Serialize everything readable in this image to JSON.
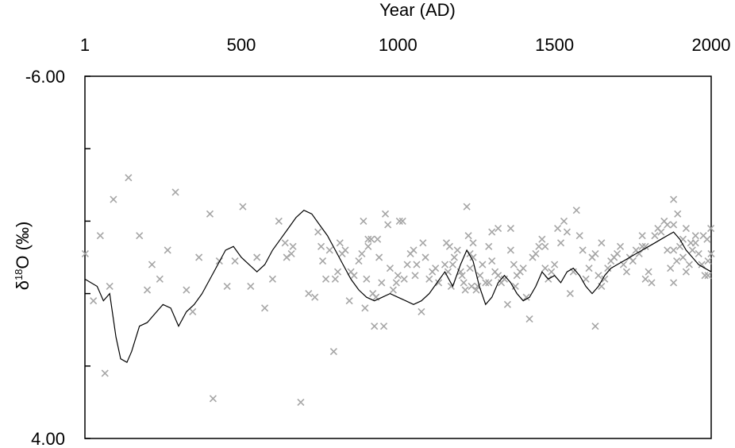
{
  "chart_data": {
    "type": "scatter",
    "title": "",
    "xlabel": "Year (AD)",
    "ylabel": {
      "main": "δ",
      "sup": "18",
      "rest": "O (‰)"
    },
    "xlim": [
      1,
      2000
    ],
    "ylim": [
      -6.0,
      4.0
    ],
    "y_inverted": true,
    "x_axis_position": "top",
    "x_ticks": [
      1,
      500,
      1000,
      1500,
      2000
    ],
    "x_tick_labels": [
      "1",
      "500",
      "1000",
      "1500",
      "2000"
    ],
    "y_ticks": [
      -6,
      -4,
      -2,
      0,
      2,
      4
    ],
    "y_tick_labels": [
      {
        "value": -6,
        "text": "-6.00"
      },
      {
        "value": 4,
        "text": "4.00"
      }
    ],
    "grid": false,
    "colors": {
      "scatter": "#a6a6a6",
      "line": "#000000",
      "frame": "#000000"
    },
    "series": [
      {
        "type": "scatter",
        "marker": "x",
        "points": [
          [
            2,
            -1.1
          ],
          [
            28,
            0.2
          ],
          [
            50,
            -1.6
          ],
          [
            65,
            2.2
          ],
          [
            80,
            -0.2
          ],
          [
            92,
            -2.6
          ],
          [
            140,
            -3.2
          ],
          [
            175,
            -1.6
          ],
          [
            200,
            -0.1
          ],
          [
            215,
            -0.8
          ],
          [
            240,
            -0.4
          ],
          [
            265,
            -1.2
          ],
          [
            290,
            -2.8
          ],
          [
            325,
            -0.1
          ],
          [
            345,
            0.5
          ],
          [
            365,
            -1.0
          ],
          [
            400,
            -2.2
          ],
          [
            410,
            2.9
          ],
          [
            430,
            -0.9
          ],
          [
            455,
            -0.2
          ],
          [
            480,
            -0.9
          ],
          [
            505,
            -2.4
          ],
          [
            530,
            -0.2
          ],
          [
            550,
            -1.0
          ],
          [
            575,
            0.4
          ],
          [
            600,
            -0.4
          ],
          [
            620,
            -2.0
          ],
          [
            645,
            -1.0
          ],
          [
            665,
            -1.3
          ],
          [
            690,
            3.0
          ],
          [
            715,
            0.0
          ],
          [
            735,
            0.1
          ],
          [
            755,
            -1.3
          ],
          [
            760,
            -0.9
          ],
          [
            770,
            -0.4
          ],
          [
            782,
            -1.2
          ],
          [
            795,
            1.6
          ],
          [
            800,
            -0.4
          ],
          [
            808,
            -0.6
          ],
          [
            815,
            -1.4
          ],
          [
            822,
            -1.1
          ],
          [
            832,
            -1.2
          ],
          [
            845,
            0.2
          ],
          [
            850,
            -0.6
          ],
          [
            860,
            -0.5
          ],
          [
            875,
            -0.9
          ],
          [
            885,
            -1.1
          ],
          [
            890,
            -2.0
          ],
          [
            895,
            0.4
          ],
          [
            900,
            -0.4
          ],
          [
            905,
            -1.3
          ],
          [
            915,
            -1.5
          ],
          [
            920,
            0.0
          ],
          [
            925,
            0.9
          ],
          [
            930,
            0.1
          ],
          [
            935,
            -1.5
          ],
          [
            940,
            -1.0
          ],
          [
            948,
            -0.3
          ],
          [
            955,
            0.9
          ],
          [
            960,
            -2.2
          ],
          [
            968,
            -1.9
          ],
          [
            975,
            -0.7
          ],
          [
            985,
            -0.1
          ],
          [
            995,
            -0.3
          ],
          [
            1000,
            -0.5
          ],
          [
            1005,
            -2.0
          ],
          [
            1015,
            -2.0
          ],
          [
            1020,
            -0.4
          ],
          [
            1030,
            -0.8
          ],
          [
            1040,
            -1.1
          ],
          [
            1050,
            -1.2
          ],
          [
            1055,
            -0.5
          ],
          [
            1060,
            -0.8
          ],
          [
            1075,
            0.5
          ],
          [
            1080,
            -1.4
          ],
          [
            1088,
            -1.0
          ],
          [
            1100,
            -0.4
          ],
          [
            1110,
            -0.6
          ],
          [
            1120,
            -0.7
          ],
          [
            1130,
            -0.3
          ],
          [
            1150,
            -0.8
          ],
          [
            1155,
            -1.4
          ],
          [
            1160,
            -0.6
          ],
          [
            1165,
            -1.3
          ],
          [
            1170,
            -0.2
          ],
          [
            1175,
            -0.8
          ],
          [
            1180,
            -1.0
          ],
          [
            1190,
            -1.2
          ],
          [
            1200,
            -0.6
          ],
          [
            1205,
            -0.5
          ],
          [
            1210,
            -0.3
          ],
          [
            1215,
            -0.1
          ],
          [
            1220,
            -2.4
          ],
          [
            1225,
            -1.6
          ],
          [
            1230,
            -0.7
          ],
          [
            1235,
            -0.2
          ],
          [
            1240,
            -1.0
          ],
          [
            1250,
            -0.1
          ],
          [
            1255,
            -0.2
          ],
          [
            1262,
            -0.5
          ],
          [
            1270,
            -0.8
          ],
          [
            1280,
            -0.3
          ],
          [
            1290,
            -0.3
          ],
          [
            1300,
            -0.9
          ],
          [
            1310,
            -0.6
          ],
          [
            1320,
            -0.5
          ],
          [
            1330,
            -0.3
          ],
          [
            1340,
            -0.4
          ],
          [
            1350,
            0.3
          ],
          [
            1360,
            -1.2
          ],
          [
            1370,
            -0.8
          ],
          [
            1375,
            -0.2
          ],
          [
            1380,
            -0.5
          ],
          [
            1390,
            -0.6
          ],
          [
            1400,
            -0.7
          ],
          [
            1410,
            0.1
          ],
          [
            1420,
            0.7
          ],
          [
            1430,
            -1.0
          ],
          [
            1440,
            -1.1
          ],
          [
            1450,
            -1.3
          ],
          [
            1460,
            -1.5
          ],
          [
            1470,
            -0.7
          ],
          [
            1480,
            -0.4
          ],
          [
            1490,
            -0.6
          ],
          [
            1500,
            -0.8
          ],
          [
            1510,
            -1.8
          ],
          [
            1520,
            -1.4
          ],
          [
            1530,
            -2.0
          ],
          [
            1540,
            -1.7
          ],
          [
            1550,
            0.0
          ],
          [
            1560,
            -0.6
          ],
          [
            1570,
            -2.3
          ],
          [
            1580,
            -1.6
          ],
          [
            1590,
            -1.2
          ],
          [
            1600,
            -0.4
          ],
          [
            1610,
            -0.7
          ],
          [
            1620,
            -1.0
          ],
          [
            1630,
            -1.1
          ],
          [
            1640,
            -0.5
          ],
          [
            1650,
            -0.2
          ],
          [
            1660,
            -0.4
          ],
          [
            1670,
            -0.7
          ],
          [
            1680,
            -0.9
          ],
          [
            1690,
            -1.0
          ],
          [
            1700,
            -1.1
          ],
          [
            1710,
            -1.3
          ],
          [
            1720,
            -0.8
          ],
          [
            1730,
            -0.6
          ],
          [
            1740,
            -1.0
          ],
          [
            1750,
            -0.9
          ],
          [
            1760,
            -1.2
          ],
          [
            1770,
            -1.1
          ],
          [
            1780,
            -1.3
          ],
          [
            1790,
            -0.4
          ],
          [
            1800,
            -0.6
          ],
          [
            1810,
            -0.3
          ],
          [
            1820,
            -1.6
          ],
          [
            1830,
            -1.8
          ],
          [
            1840,
            -1.7
          ],
          [
            1850,
            -2.0
          ],
          [
            1860,
            -1.9
          ],
          [
            1870,
            -0.7
          ],
          [
            1880,
            -0.3
          ],
          [
            1890,
            -0.9
          ],
          [
            1900,
            -1.3
          ],
          [
            1910,
            -1.0
          ],
          [
            1920,
            -0.6
          ],
          [
            1930,
            -0.8
          ],
          [
            1940,
            -1.2
          ],
          [
            1950,
            -1.4
          ],
          [
            1960,
            -1.1
          ],
          [
            1970,
            -0.8
          ],
          [
            1980,
            -0.5
          ],
          [
            1990,
            -0.9
          ],
          [
            2000,
            -1.1
          ],
          [
            660,
            -1.1
          ],
          [
            640,
            -1.4
          ],
          [
            745,
            -1.7
          ],
          [
            905,
            -1.5
          ],
          [
            1320,
            -1.8
          ],
          [
            1630,
            0.9
          ],
          [
            1860,
            -1.2
          ],
          [
            1935,
            -1.4
          ],
          [
            1880,
            -1.9
          ],
          [
            1880,
            -2.6
          ],
          [
            1893,
            -2.2
          ],
          [
            1880,
            -1.2
          ],
          [
            1920,
            -1.8
          ],
          [
            1990,
            -0.5
          ],
          [
            1987,
            -1.5
          ],
          [
            1230,
            -1.1
          ],
          [
            1290,
            -1.3
          ],
          [
            1300,
            -1.7
          ],
          [
            1360,
            -1.8
          ],
          [
            1470,
            -1.3
          ],
          [
            1650,
            -1.4
          ],
          [
            1780,
            -1.6
          ],
          [
            1790,
            -1.3
          ],
          [
            1910,
            -1.5
          ],
          [
            1950,
            -1.6
          ],
          [
            1975,
            -1.6
          ],
          [
            1999,
            -1.8
          ],
          [
            1240,
            -1.4
          ]
        ]
      },
      {
        "type": "line",
        "points": [
          [
            1,
            -0.4
          ],
          [
            40,
            -0.2
          ],
          [
            60,
            0.2
          ],
          [
            80,
            0.0
          ],
          [
            100,
            1.2
          ],
          [
            115,
            1.8
          ],
          [
            135,
            1.9
          ],
          [
            150,
            1.6
          ],
          [
            175,
            0.9
          ],
          [
            200,
            0.8
          ],
          [
            220,
            0.6
          ],
          [
            250,
            0.3
          ],
          [
            275,
            0.4
          ],
          [
            300,
            0.9
          ],
          [
            325,
            0.5
          ],
          [
            350,
            0.3
          ],
          [
            375,
            0.0
          ],
          [
            400,
            -0.4
          ],
          [
            425,
            -0.8
          ],
          [
            450,
            -1.2
          ],
          [
            475,
            -1.3
          ],
          [
            500,
            -1.0
          ],
          [
            525,
            -0.8
          ],
          [
            550,
            -0.6
          ],
          [
            575,
            -0.8
          ],
          [
            600,
            -1.2
          ],
          [
            625,
            -1.5
          ],
          [
            650,
            -1.8
          ],
          [
            675,
            -2.1
          ],
          [
            700,
            -2.3
          ],
          [
            725,
            -2.2
          ],
          [
            750,
            -1.9
          ],
          [
            775,
            -1.6
          ],
          [
            800,
            -1.2
          ],
          [
            825,
            -0.8
          ],
          [
            850,
            -0.4
          ],
          [
            875,
            -0.1
          ],
          [
            900,
            0.1
          ],
          [
            925,
            0.2
          ],
          [
            950,
            0.1
          ],
          [
            975,
            0.0
          ],
          [
            1000,
            0.1
          ],
          [
            1025,
            0.2
          ],
          [
            1050,
            0.3
          ],
          [
            1075,
            0.2
          ],
          [
            1100,
            0.0
          ],
          [
            1125,
            -0.3
          ],
          [
            1150,
            -0.6
          ],
          [
            1175,
            -0.2
          ],
          [
            1200,
            -0.8
          ],
          [
            1220,
            -1.2
          ],
          [
            1240,
            -0.9
          ],
          [
            1260,
            -0.2
          ],
          [
            1280,
            0.3
          ],
          [
            1300,
            0.1
          ],
          [
            1320,
            -0.3
          ],
          [
            1340,
            -0.5
          ],
          [
            1360,
            -0.3
          ],
          [
            1380,
            0.0
          ],
          [
            1400,
            0.2
          ],
          [
            1420,
            0.1
          ],
          [
            1440,
            -0.2
          ],
          [
            1460,
            -0.6
          ],
          [
            1480,
            -0.4
          ],
          [
            1500,
            -0.5
          ],
          [
            1520,
            -0.3
          ],
          [
            1540,
            -0.6
          ],
          [
            1560,
            -0.7
          ],
          [
            1580,
            -0.5
          ],
          [
            1600,
            -0.2
          ],
          [
            1620,
            0.0
          ],
          [
            1640,
            -0.2
          ],
          [
            1660,
            -0.5
          ],
          [
            1680,
            -0.7
          ],
          [
            1700,
            -0.8
          ],
          [
            1720,
            -0.9
          ],
          [
            1740,
            -1.0
          ],
          [
            1760,
            -1.1
          ],
          [
            1780,
            -1.2
          ],
          [
            1800,
            -1.3
          ],
          [
            1820,
            -1.4
          ],
          [
            1840,
            -1.5
          ],
          [
            1860,
            -1.6
          ],
          [
            1880,
            -1.7
          ],
          [
            1900,
            -1.5
          ],
          [
            1920,
            -1.2
          ],
          [
            1940,
            -1.0
          ],
          [
            1960,
            -0.8
          ],
          [
            1980,
            -0.7
          ],
          [
            2000,
            -0.6
          ]
        ]
      }
    ]
  }
}
